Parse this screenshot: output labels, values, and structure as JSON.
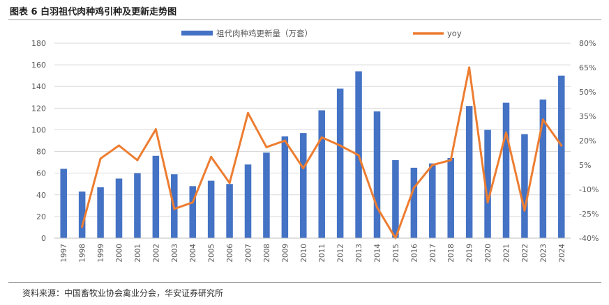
{
  "page": {
    "title": "图表 6  白羽祖代肉种鸡引种及更新走势图",
    "source": "资料来源：中国畜牧业协会禽业分会，华安证券研究所"
  },
  "chart_data": {
    "type": "bar",
    "title": "",
    "xlabel": "",
    "ylabel": "",
    "categories": [
      "1997",
      "1998",
      "1999",
      "2000",
      "2001",
      "2002",
      "2003",
      "2004",
      "2005",
      "2006",
      "2007",
      "2008",
      "2009",
      "2010",
      "2011",
      "2012",
      "2013",
      "2014",
      "2015",
      "2016",
      "2017",
      "2018",
      "2019",
      "2020",
      "2021",
      "2022",
      "2023",
      "2024"
    ],
    "series": [
      {
        "name": "祖代肉种鸡更新量（万套）",
        "type": "bar",
        "axis": "left",
        "color": "#4472C4",
        "values": [
          64,
          43,
          47,
          55,
          60,
          76,
          59,
          48,
          53,
          50,
          68,
          79,
          94,
          97,
          118,
          138,
          154,
          117,
          72,
          65,
          69,
          74,
          122,
          100,
          125,
          96,
          128,
          150
        ]
      },
      {
        "name": "yoy",
        "type": "line",
        "axis": "right",
        "color": "#ED7D31",
        "values": [
          null,
          -33,
          9,
          17,
          8,
          27,
          -22,
          -18,
          10,
          -6,
          37,
          16,
          20,
          3,
          22,
          17,
          11,
          -21,
          -40,
          -9,
          5,
          8,
          65,
          -18,
          25,
          -23,
          33,
          17
        ]
      }
    ],
    "y_left": {
      "min": 0,
      "max": 180,
      "step": 20,
      "ticks": [
        "0",
        "20",
        "40",
        "60",
        "80",
        "100",
        "120",
        "140",
        "160",
        "180"
      ]
    },
    "y_right": {
      "min": -40,
      "max": 80,
      "step": 15,
      "ticks": [
        "-40%",
        "-25%",
        "-10%",
        "5%",
        "20%",
        "35%",
        "50%",
        "65%",
        "80%"
      ]
    },
    "grid": true,
    "legend": "top"
  }
}
